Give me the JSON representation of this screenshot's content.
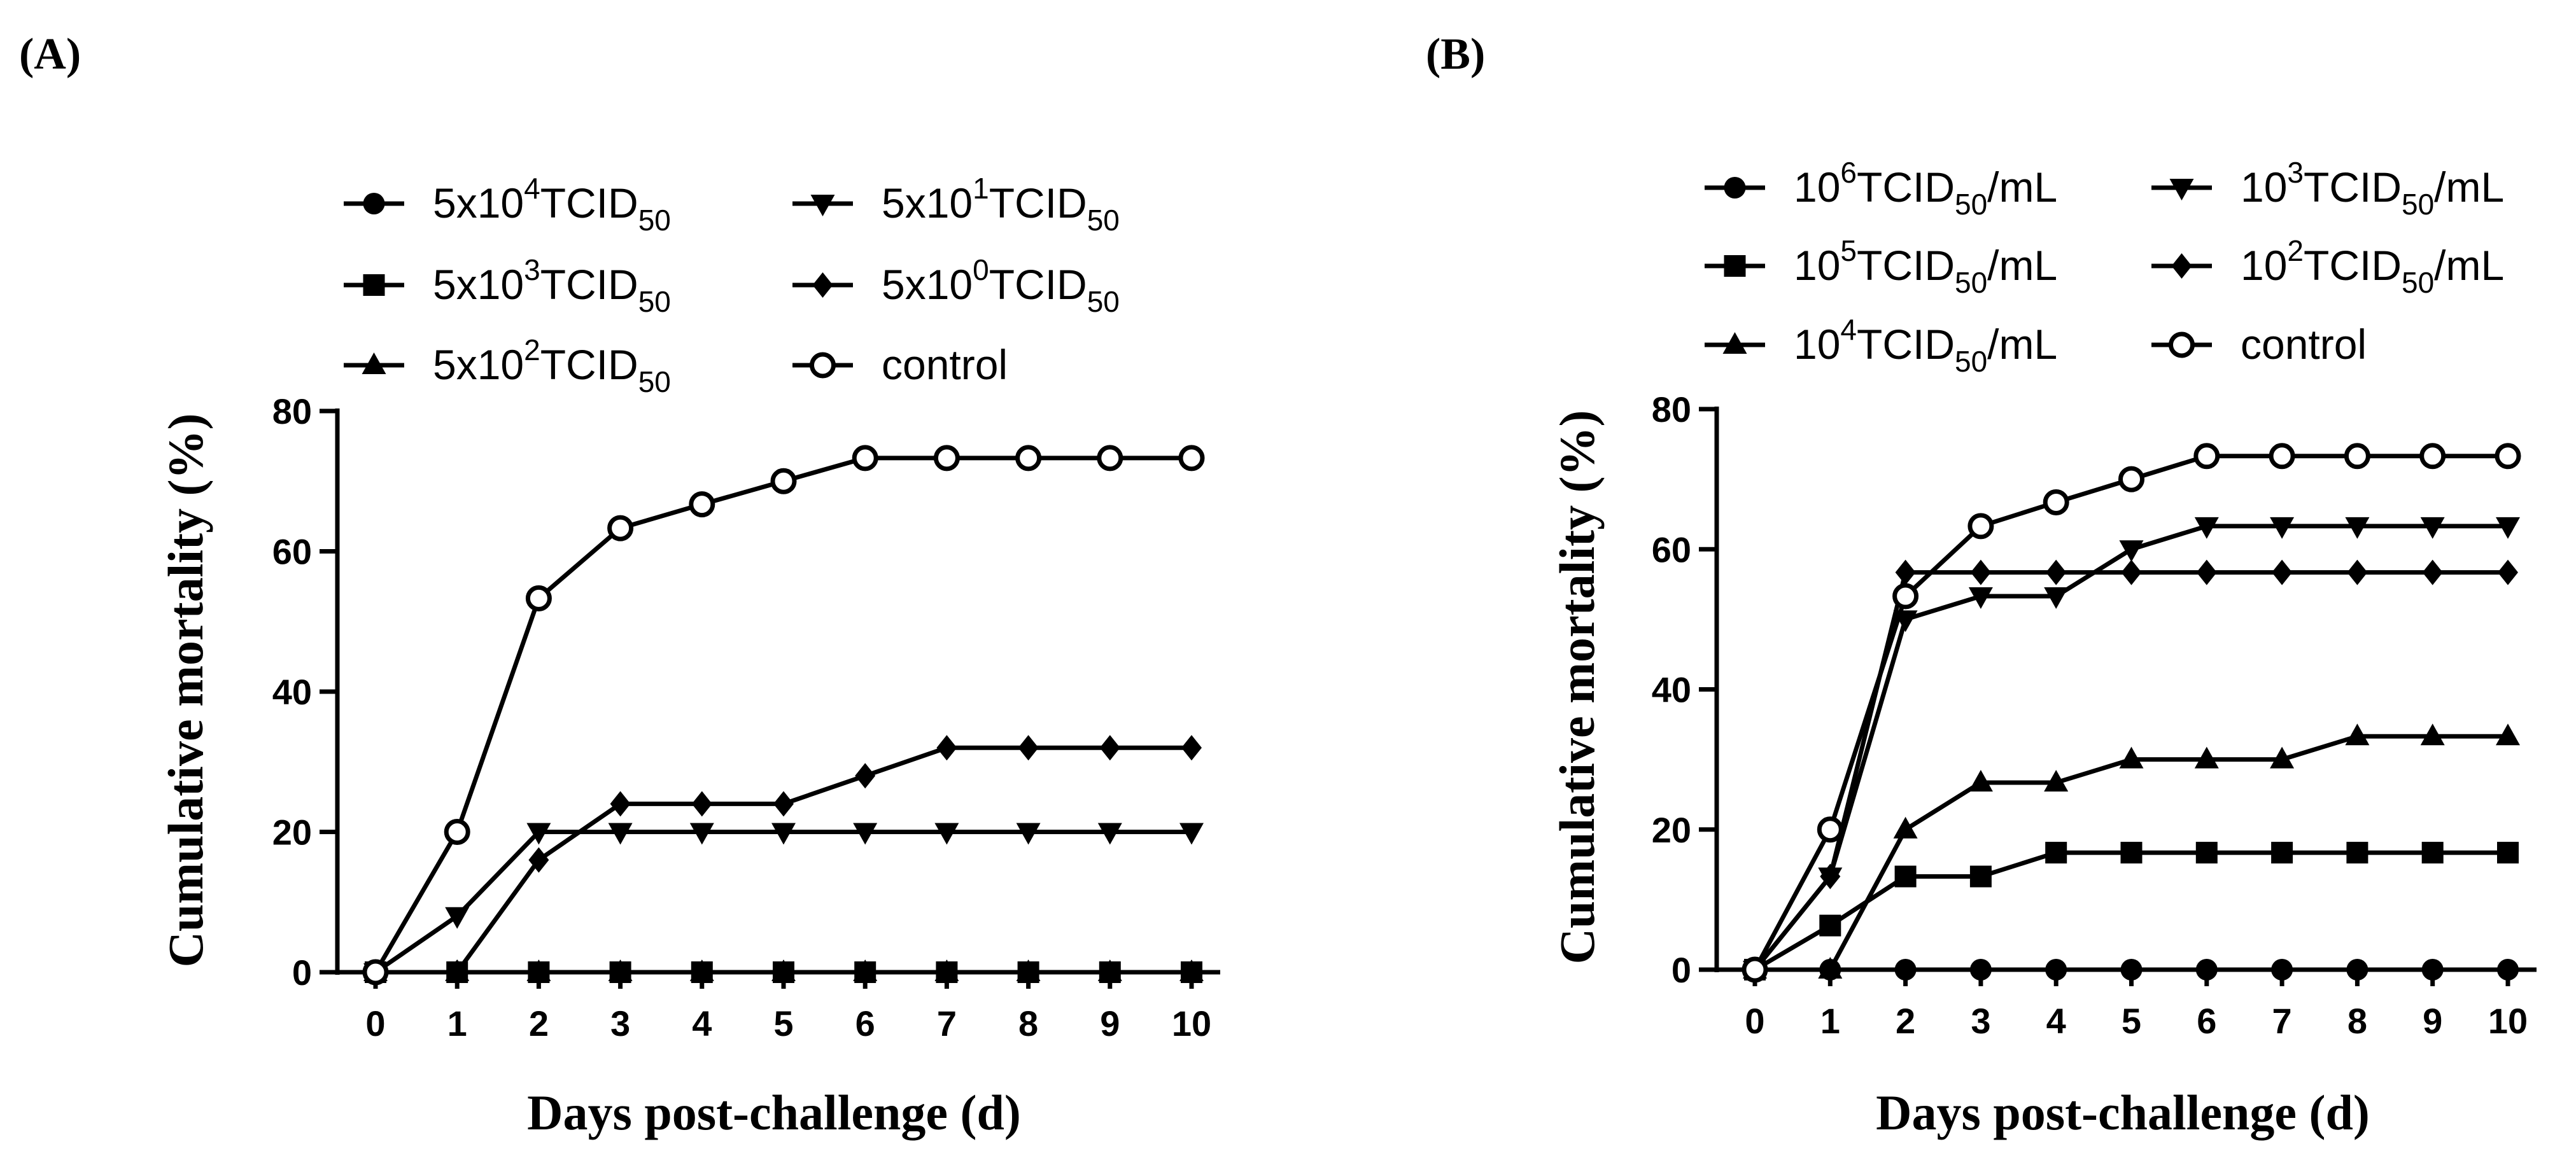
{
  "chart_data": [
    {
      "type": "line",
      "panel_label": "(A)",
      "xlabel": "Days post-challenge (d)",
      "ylabel": "Cumulative mortality (%)",
      "x": [
        0,
        1,
        2,
        3,
        4,
        5,
        6,
        7,
        8,
        9,
        10
      ],
      "xlim": [
        0,
        10
      ],
      "ylim": [
        0,
        80
      ],
      "yticks": [
        0,
        20,
        40,
        60,
        80
      ],
      "grid": false,
      "legend_position": "top",
      "series": [
        {
          "name": "5x10^4 TCID50",
          "marker": "circle-filled",
          "label": {
            "base": "5x10",
            "sup": "4",
            "main": "TCID",
            "sub": "50",
            "tail": ""
          },
          "values": [
            0,
            0,
            0,
            0,
            0,
            0,
            0,
            0,
            0,
            0,
            0
          ]
        },
        {
          "name": "5x10^3 TCID50",
          "marker": "square",
          "label": {
            "base": "5x10",
            "sup": "3",
            "main": "TCID",
            "sub": "50",
            "tail": ""
          },
          "values": [
            0,
            0,
            0,
            0,
            0,
            0,
            0,
            0,
            0,
            0,
            0
          ]
        },
        {
          "name": "5x10^2 TCID50",
          "marker": "triangle-up",
          "label": {
            "base": "5x10",
            "sup": "2",
            "main": "TCID",
            "sub": "50",
            "tail": ""
          },
          "values": [
            0,
            0,
            0,
            0,
            0,
            0,
            0,
            0,
            0,
            0,
            0
          ]
        },
        {
          "name": "5x10^1 TCID50",
          "marker": "triangle-down",
          "label": {
            "base": "5x10",
            "sup": "1",
            "main": "TCID",
            "sub": "50",
            "tail": ""
          },
          "values": [
            0,
            8,
            20,
            20,
            20,
            20,
            20,
            20,
            20,
            20,
            20
          ]
        },
        {
          "name": "5x10^0 TCID50",
          "marker": "diamond",
          "label": {
            "base": "5x10",
            "sup": "0",
            "main": "TCID",
            "sub": "50",
            "tail": ""
          },
          "values": [
            0,
            0,
            16,
            24,
            24,
            24,
            28,
            32,
            32,
            32,
            32
          ]
        },
        {
          "name": "control",
          "marker": "circle-open",
          "label": {
            "base": "control",
            "sup": "",
            "main": "",
            "sub": "",
            "tail": ""
          },
          "values": [
            0,
            20,
            53.3,
            63.3,
            66.7,
            70,
            73.3,
            73.3,
            73.3,
            73.3,
            73.3
          ]
        }
      ]
    },
    {
      "type": "line",
      "panel_label": "(B)",
      "xlabel": "Days post-challenge (d)",
      "ylabel": "Cumulative mortality (%)",
      "x": [
        0,
        1,
        2,
        3,
        4,
        5,
        6,
        7,
        8,
        9,
        10
      ],
      "xlim": [
        0,
        10
      ],
      "ylim": [
        0,
        80
      ],
      "yticks": [
        0,
        20,
        40,
        60,
        80
      ],
      "grid": false,
      "legend_position": "top",
      "series": [
        {
          "name": "10^6 TCID50/mL",
          "marker": "circle-filled",
          "label": {
            "base": "10",
            "sup": "6",
            "main": "TCID",
            "sub": "50",
            "tail": "/mL"
          },
          "values": [
            0,
            0,
            0,
            0,
            0,
            0,
            0,
            0,
            0,
            0,
            0
          ]
        },
        {
          "name": "10^5 TCID50/mL",
          "marker": "square",
          "label": {
            "base": "10",
            "sup": "5",
            "main": "TCID",
            "sub": "50",
            "tail": "/mL"
          },
          "values": [
            0,
            6.3,
            13.3,
            13.3,
            16.7,
            16.7,
            16.7,
            16.7,
            16.7,
            16.7,
            16.7
          ]
        },
        {
          "name": "10^4 TCID50/mL",
          "marker": "triangle-up",
          "label": {
            "base": "10",
            "sup": "4",
            "main": "TCID",
            "sub": "50",
            "tail": "/mL"
          },
          "values": [
            0,
            0,
            20,
            26.7,
            26.7,
            30,
            30,
            30,
            33.3,
            33.3,
            33.3
          ]
        },
        {
          "name": "10^3 TCID50/mL",
          "marker": "triangle-down",
          "label": {
            "base": "10",
            "sup": "3",
            "main": "TCID",
            "sub": "50",
            "tail": "/mL"
          },
          "values": [
            0,
            13.3,
            50,
            53.3,
            53.3,
            60,
            63.3,
            63.3,
            63.3,
            63.3,
            63.3
          ]
        },
        {
          "name": "10^2 TCID50/mL",
          "marker": "diamond",
          "label": {
            "base": "10",
            "sup": "2",
            "main": "TCID",
            "sub": "50",
            "tail": "/mL"
          },
          "values": [
            0,
            13.3,
            56.7,
            56.7,
            56.7,
            56.7,
            56.7,
            56.7,
            56.7,
            56.7,
            56.7
          ]
        },
        {
          "name": "control",
          "marker": "circle-open",
          "label": {
            "base": "control",
            "sup": "",
            "main": "",
            "sub": "",
            "tail": ""
          },
          "values": [
            0,
            20,
            53.3,
            63.3,
            66.7,
            70,
            73.3,
            73.3,
            73.3,
            73.3,
            73.3
          ]
        }
      ]
    }
  ]
}
